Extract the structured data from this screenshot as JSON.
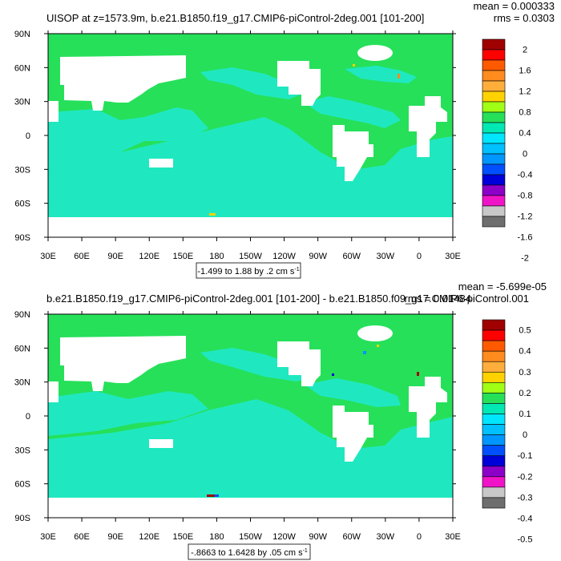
{
  "colors": {
    "ocean_low": "#1fe8c0",
    "ocean_zero": "#26e05a",
    "land": "#ffffff"
  },
  "chart_data": [
    {
      "type": "heatmap",
      "title": "UISOP at z=1573.9m, b.e21.B1850.f19_g17.CMIP6-piControl-2deg.001 [101-200]",
      "stat_mean": "mean = 0.000333",
      "stat_rms": "rms = 0.0303",
      "info_label": "-1.499 to 1.88 by .2 cm s",
      "info_sup": "-1",
      "x_ticks": [
        "30E",
        "60E",
        "90E",
        "120E",
        "150E",
        "180",
        "150W",
        "120W",
        "90W",
        "60W",
        "30W",
        "0",
        "30E"
      ],
      "y_ticks": [
        "90N",
        "60N",
        "30N",
        "0",
        "30S",
        "60S",
        "90S"
      ],
      "colorbar_labels": [
        "2",
        "1.6",
        "1.2",
        "0.8",
        "0.4",
        "0",
        "-0.4",
        "-0.8",
        "-1.2",
        "-1.6",
        "-2"
      ],
      "colorbar_colors": [
        "#a00000",
        "#ff0000",
        "#ff5a00",
        "#ff8c1e",
        "#ffae3c",
        "#ffd200",
        "#a0ff14",
        "#26e05a",
        "#00e8b4",
        "#00e6ff",
        "#00c0ff",
        "#0096ff",
        "#0050ff",
        "#0000d8",
        "#8c00c8",
        "#f014c8",
        "#c8c8c8",
        "#6e6e6e"
      ]
    },
    {
      "type": "heatmap",
      "title": "b.e21.B1850.f19_g17.CMIP6-piControl-2deg.001 [101-200] - b.e21.B1850.f09_g17.CMIP6-piControl.001",
      "stat_mean": "mean = -5.699e-05",
      "stat_rms": "rms = 0.01484",
      "info_label": "-.8663 to 1.6428 by .05 cm s",
      "info_sup": "-1",
      "x_ticks": [
        "30E",
        "60E",
        "90E",
        "120E",
        "150E",
        "180",
        "150W",
        "120W",
        "90W",
        "60W",
        "30W",
        "0",
        "30E"
      ],
      "y_ticks": [
        "90N",
        "60N",
        "30N",
        "0",
        "30S",
        "60S",
        "90S"
      ],
      "colorbar_labels": [
        "0.5",
        "0.4",
        "0.3",
        "0.2",
        "0.1",
        "0",
        "-0.1",
        "-0.2",
        "-0.3",
        "-0.4",
        "-0.5"
      ],
      "colorbar_colors": [
        "#a00000",
        "#ff0000",
        "#ff5a00",
        "#ff8c1e",
        "#ffae3c",
        "#ffd200",
        "#a0ff14",
        "#26e05a",
        "#00e8b4",
        "#00e6ff",
        "#00c0ff",
        "#0096ff",
        "#0050ff",
        "#0000d8",
        "#8c00c8",
        "#f014c8",
        "#c8c8c8",
        "#6e6e6e"
      ]
    }
  ]
}
